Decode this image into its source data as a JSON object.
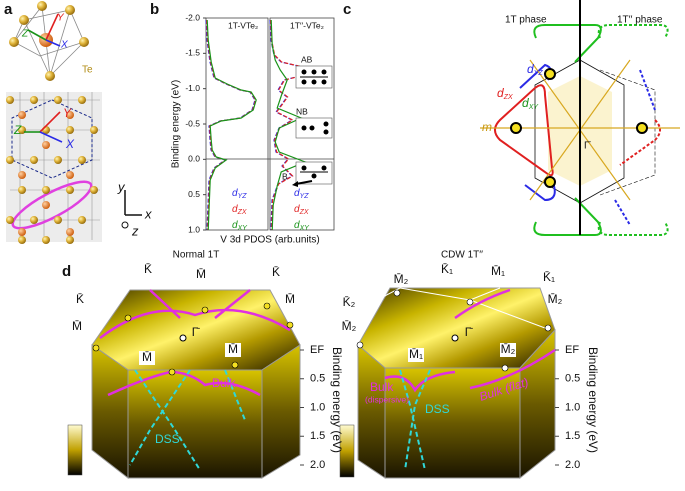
{
  "panel_a": {
    "label": "a",
    "atom": "Te",
    "top_axes": [
      "Y",
      "X",
      "Z"
    ],
    "mid_axes": [
      "Y",
      "Z",
      "X"
    ],
    "frame_axes": [
      "y",
      "x",
      "z"
    ]
  },
  "panel_b": {
    "label": "b",
    "left_title": "1T-VTe₂",
    "right_title": "1T′′-VTe₂",
    "y_label": "Binding energy (eV)",
    "x_label": "V 3d PDOS (arb.units)",
    "ylim": [
      -2,
      1
    ],
    "yticks": [
      {
        "value": -2,
        "label": "-2.0"
      },
      -1.5,
      {
        "value": -1,
        "label": "-1.0"
      },
      -0.5,
      {
        "value": 0,
        "label": "0.0"
      },
      0.5,
      {
        "value": 1,
        "label": "1.0"
      }
    ],
    "legend": [
      {
        "main": "d",
        "sub": "YZ",
        "color": "#2b2be6"
      },
      {
        "main": "d",
        "sub": "ZX",
        "color": "#e02424"
      },
      {
        "main": "d",
        "sub": "XY",
        "color": "#1a931a"
      }
    ],
    "annotations": [
      "AB",
      "NB",
      "B"
    ]
  },
  "panel_c": {
    "label": "c",
    "left_phase": "1T phase",
    "right_phase": "1T′′ phase",
    "orbitals": [
      {
        "main": "d",
        "sub": "ZX"
      },
      {
        "main": "d",
        "sub": "YZ"
      },
      {
        "main": "d",
        "sub": "XY"
      }
    ],
    "mirror": "m",
    "gamma": "Γ̄"
  },
  "panel_d": {
    "label": "d",
    "left_title": "Normal 1T",
    "right_title": "CDW 1T′′",
    "axis_label": "Binding energy (eV)",
    "ticks": [
      {
        "value": 0,
        "label": "EF"
      },
      0.5,
      {
        "value": 1,
        "label": "1.0"
      },
      1.5,
      {
        "value": 2,
        "label": "2.0"
      }
    ],
    "left_points": [
      "K̄",
      "M̄",
      "K̄",
      "K̄",
      "M̄",
      "M̄",
      "Γ̄",
      "M̄",
      "M̄"
    ],
    "left_bands": [
      "Bulk",
      "DSS"
    ],
    "right_points": [
      "M̄₂",
      "K̄₁",
      "M̄₁",
      "K̄₁",
      "K̄₂",
      "M̄₂",
      "Γ̄",
      "M̄₂",
      "M̄₁",
      "M̄₂"
    ],
    "right_bands": [
      "Bulk",
      "(dispersive)",
      "DSS",
      "Bulk (flat)"
    ]
  }
}
